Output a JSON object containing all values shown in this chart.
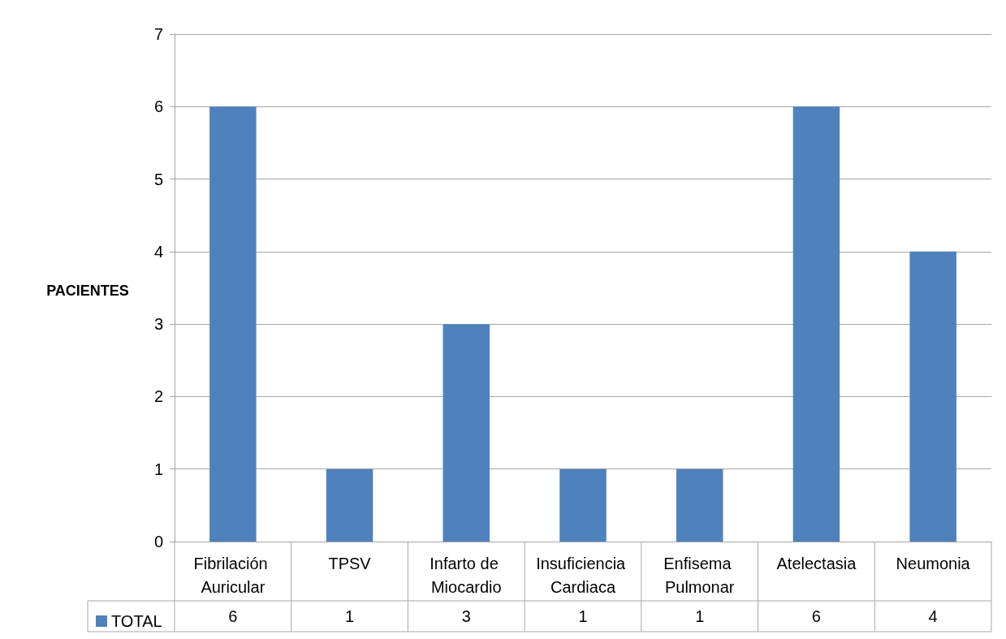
{
  "chart_data": {
    "type": "bar",
    "ylabel": "PACIENTES",
    "categories": [
      "Fibrilación Auricular",
      "TPSV",
      "Infarto de Miocardio",
      "Insuficiencia Cardiaca",
      "Enfisema Pulmonar",
      "Atelectasia",
      "Neumonia"
    ],
    "series": [
      {
        "name": "TOTAL",
        "color": "#4f81bd",
        "values": [
          6,
          1,
          3,
          1,
          1,
          6,
          4
        ]
      }
    ],
    "ylim": [
      0,
      7
    ],
    "yticks": [
      0,
      1,
      2,
      3,
      4,
      5,
      6,
      7
    ],
    "grid": "y",
    "legend": "bottom left",
    "data_labels": true
  }
}
